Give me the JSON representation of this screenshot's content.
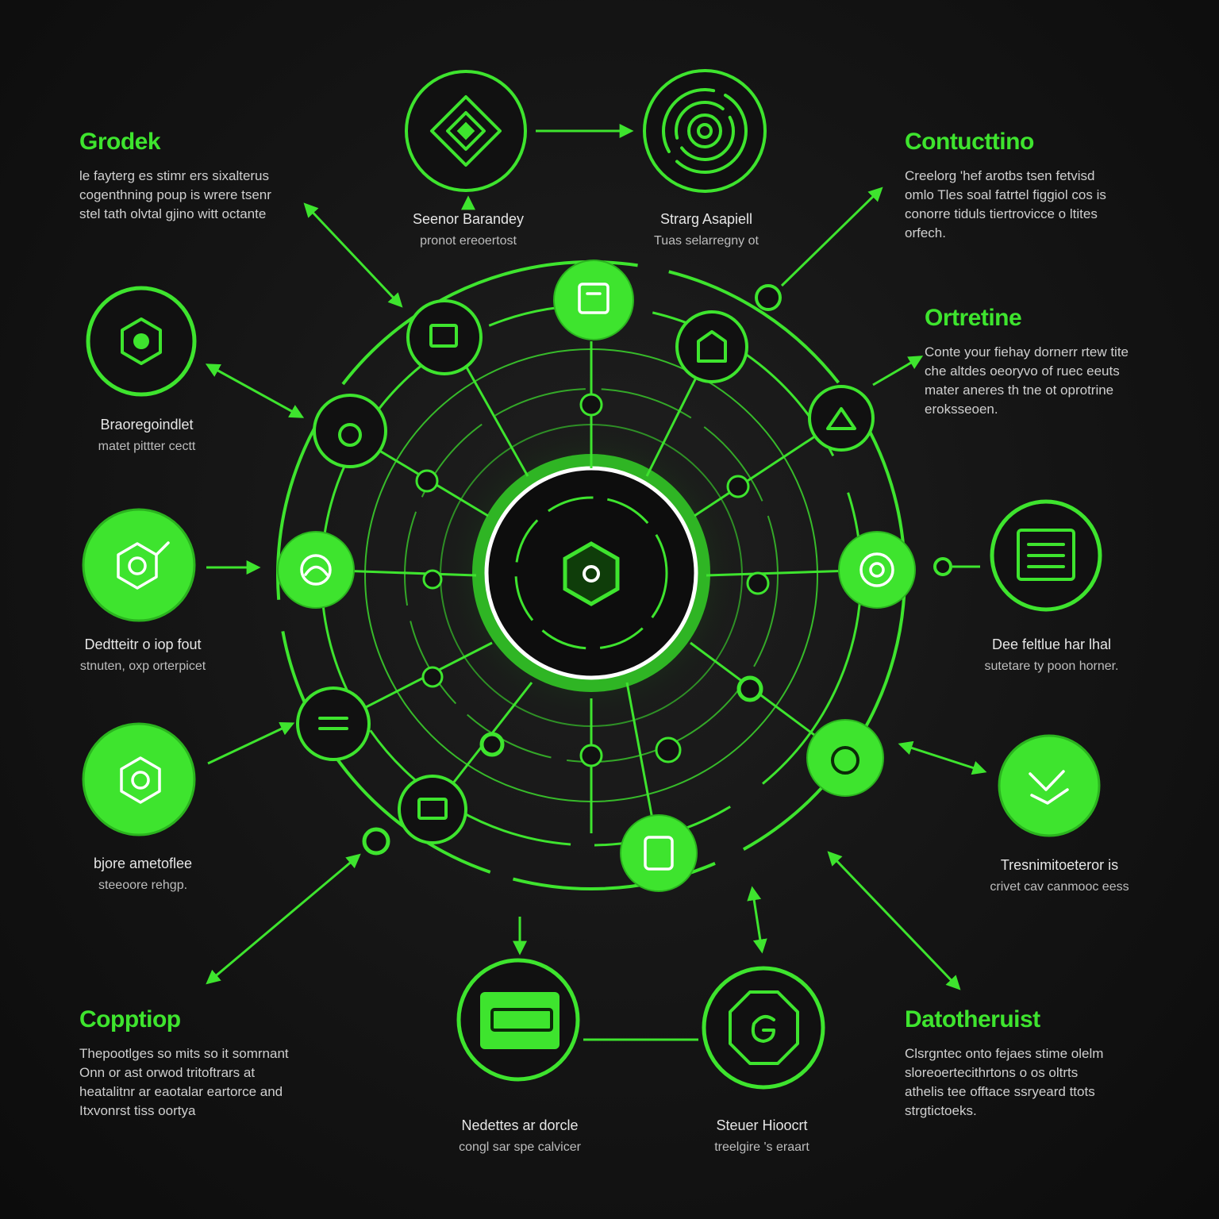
{
  "colors": {
    "accent": "#3ee42e",
    "background": "#141414"
  },
  "headings": {
    "top_left": {
      "title": "Grodek",
      "lines": [
        "le fayterg es stimr ers sixalterus",
        "cogenthning poup is wrere tsenr",
        "stel tath olvtal gjino witt octante"
      ]
    },
    "top_right": {
      "title": "Contucttino",
      "lines": [
        "Creelorg 'hef arotbs tsen fetvisd",
        "omlo Tles soal fatrtel figgiol cos is",
        "conorre tiduls tiertrovicce o ltites",
        "orfech."
      ]
    },
    "mid_right": {
      "title": "Ortretine",
      "lines": [
        "Conte your fiehay dornerr rtew tite",
        "che altdes oeoryvo of ruec eeuts",
        "mater aneres th tne ot oprotrine",
        "eroksseoen."
      ]
    },
    "bottom_left": {
      "title": "Copptiop",
      "lines": [
        "Thepootlges so mits so it somrnant",
        "Onn or ast orwod tritoftrars at",
        "heatalitnr ar eaotalar eartorce and",
        "Itxvonrst tiss oortya"
      ]
    },
    "bottom_right": {
      "title": "Datotheruist",
      "lines": [
        "Clsrgntec onto fejaes stime olelm",
        "sloreoertecithrtons o os oltrts",
        "athelis tee offtace ssryeard ttots",
        "strgtictoeks."
      ]
    }
  },
  "captions": {
    "top_center_left": {
      "title": "Seenor Barandey",
      "sub": "pronot ereoertost"
    },
    "top_center_right": {
      "title": "Strarg Asapiell",
      "sub": "Tuas selarregny ot"
    },
    "left_1": {
      "title": "Braoregoindlet",
      "sub": "matet pittter cectt"
    },
    "left_2": {
      "title": "Dedtteitr o iop fout",
      "sub": "stnuten, oxp orterpicet"
    },
    "left_3": {
      "title": "bjore ametoflee",
      "sub": "steeoore rehgp."
    },
    "right_1": {
      "title": "Dee feltlue har lhal",
      "sub": "sutetare ty poon horner."
    },
    "right_2": {
      "title": "Tresnimitoeteror is",
      "sub": "crivet cav canmooc eess"
    },
    "bottom_left": {
      "title": "Nedettes ar dorcle",
      "sub": "congl sar spe calvicer"
    },
    "bottom_right": {
      "title": "Steuer Hioocrt",
      "sub": "treelgire 's eraart"
    }
  },
  "icons": {
    "center": "hexagon-core-icon",
    "top_left_outer": "diamond-icon",
    "top_right_outer": "target-icon",
    "left_outer_1": "hexagon-icon",
    "left_outer_2": "hexagon-icon",
    "left_outer_3": "hexagon-icon",
    "right_outer_1": "document-icon",
    "right_outer_2": "chart-icon",
    "bottom_outer_left": "folder-icon",
    "bottom_outer_right": "octagon-g-icon"
  }
}
